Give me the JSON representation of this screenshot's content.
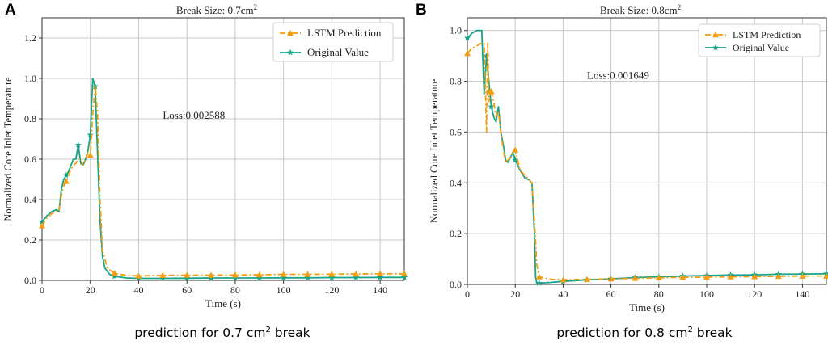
{
  "panels": [
    {
      "letter": "A",
      "caption_pre": "prediction for 0.7 cm",
      "caption_sup": "2",
      "caption_post": " break"
    },
    {
      "letter": "B",
      "caption_pre": "prediction for 0.8 cm",
      "caption_sup": "2",
      "caption_post": " break"
    }
  ],
  "chart_data": [
    {
      "type": "line",
      "title": "Break Size: 0.7cm²",
      "title_pre": "Break Size: 0.7cm",
      "title_sup": "2",
      "xlabel": "Time (s)",
      "ylabel": "Normalized Core Inlet Temperature",
      "xlim": [
        0,
        150
      ],
      "ylim": [
        0,
        1.3
      ],
      "xticks": [
        0,
        20,
        40,
        60,
        80,
        100,
        120,
        140
      ],
      "yticks": [
        0.0,
        0.2,
        0.4,
        0.6,
        0.8,
        1.0,
        1.2
      ],
      "ytick_labels": [
        "0.0",
        "0.2",
        "0.4",
        "0.6",
        "0.8",
        "1.0",
        "1.2"
      ],
      "grid": true,
      "legend_position": "top-right",
      "annotation": {
        "text": "Loss:0.002588",
        "x": 50,
        "y": 0.8
      },
      "series": [
        {
          "name": "LSTM Prediction",
          "color": "#f39c12",
          "style": "dashdot",
          "marker": "triangle",
          "x": [
            0,
            2,
            4,
            6,
            7,
            8,
            9,
            10,
            11,
            12,
            13,
            14,
            15,
            16,
            17,
            18,
            19,
            20,
            21,
            22,
            23,
            24,
            25,
            27,
            30,
            35,
            40,
            50,
            60,
            70,
            80,
            90,
            100,
            110,
            120,
            130,
            140,
            150
          ],
          "y": [
            0.27,
            0.31,
            0.33,
            0.34,
            0.34,
            0.42,
            0.47,
            0.49,
            0.52,
            0.55,
            0.57,
            0.58,
            0.6,
            0.6,
            0.57,
            0.6,
            0.63,
            0.62,
            0.82,
            0.97,
            0.82,
            0.4,
            0.15,
            0.06,
            0.035,
            0.025,
            0.022,
            0.025,
            0.026,
            0.026,
            0.027,
            0.028,
            0.03,
            0.03,
            0.031,
            0.032,
            0.033,
            0.033
          ],
          "marker_x": [
            0,
            10,
            20,
            30,
            40,
            50,
            60,
            70,
            80,
            90,
            100,
            110,
            120,
            130,
            140,
            150
          ],
          "marker_y": [
            0.27,
            0.49,
            0.62,
            0.035,
            0.022,
            0.025,
            0.026,
            0.026,
            0.027,
            0.028,
            0.03,
            0.03,
            0.031,
            0.032,
            0.033,
            0.033
          ]
        },
        {
          "name": "Original Value",
          "color": "#17a589",
          "style": "solid",
          "marker": "star",
          "x": [
            0,
            2,
            4,
            6,
            7,
            8,
            9,
            10,
            11,
            12,
            13,
            14,
            15,
            16,
            17,
            18,
            19,
            20,
            21,
            22,
            23,
            24,
            25,
            26,
            28,
            30,
            35,
            40,
            50,
            60,
            70,
            80,
            90,
            100,
            110,
            120,
            130,
            140,
            150
          ],
          "y": [
            0.29,
            0.32,
            0.34,
            0.35,
            0.34,
            0.45,
            0.5,
            0.52,
            0.54,
            0.57,
            0.6,
            0.6,
            0.67,
            0.58,
            0.57,
            0.6,
            0.64,
            0.72,
            1.0,
            0.96,
            0.62,
            0.3,
            0.12,
            0.06,
            0.03,
            0.02,
            0.012,
            0.01,
            0.01,
            0.011,
            0.012,
            0.012,
            0.012,
            0.013,
            0.013,
            0.014,
            0.014,
            0.015,
            0.015
          ],
          "marker_x": [
            0,
            10,
            15,
            20,
            22,
            30,
            40,
            50,
            60,
            70,
            80,
            90,
            100,
            110,
            120,
            130,
            140,
            150
          ],
          "marker_y": [
            0.29,
            0.52,
            0.67,
            0.72,
            0.96,
            0.02,
            0.01,
            0.01,
            0.011,
            0.012,
            0.012,
            0.012,
            0.013,
            0.013,
            0.014,
            0.014,
            0.015,
            0.015
          ]
        }
      ]
    },
    {
      "type": "line",
      "title": "Break Size: 0.8cm²",
      "title_pre": "Break Size: 0.8cm",
      "title_sup": "2",
      "xlabel": "Time (s)",
      "ylabel": "Normalized Core Inlet Temperature",
      "xlim": [
        0,
        150
      ],
      "ylim": [
        0,
        1.05
      ],
      "xticks": [
        0,
        20,
        40,
        60,
        80,
        100,
        120,
        140
      ],
      "yticks": [
        0.0,
        0.2,
        0.4,
        0.6,
        0.8,
        1.0
      ],
      "ytick_labels": [
        "0.0",
        "0.2",
        "0.4",
        "0.6",
        "0.8",
        "1.0"
      ],
      "grid": true,
      "legend_position": "top-right",
      "annotation": {
        "text": "Loss:0.001649",
        "x": 50,
        "y": 0.81
      },
      "series": [
        {
          "name": "LSTM Prediction",
          "color": "#f39c12",
          "style": "dashdot",
          "marker": "triangle",
          "x": [
            0,
            2,
            4,
            6,
            7,
            7.5,
            8,
            8.5,
            9,
            10,
            11,
            12,
            13,
            14,
            15,
            16,
            17,
            18,
            19,
            20,
            22,
            24,
            26,
            27,
            28,
            29,
            30,
            35,
            40,
            50,
            60,
            70,
            80,
            90,
            100,
            110,
            120,
            130,
            140,
            150
          ],
          "y": [
            0.91,
            0.93,
            0.94,
            0.95,
            0.95,
            0.78,
            0.6,
            0.95,
            0.72,
            0.76,
            0.72,
            0.66,
            0.68,
            0.6,
            0.53,
            0.48,
            0.49,
            0.5,
            0.52,
            0.53,
            0.45,
            0.43,
            0.41,
            0.4,
            0.25,
            0.08,
            0.03,
            0.02,
            0.018,
            0.02,
            0.022,
            0.024,
            0.026,
            0.028,
            0.029,
            0.03,
            0.031,
            0.032,
            0.033,
            0.033
          ],
          "marker_x": [
            0,
            10,
            20,
            30,
            40,
            50,
            60,
            70,
            80,
            90,
            100,
            110,
            120,
            130,
            140,
            150
          ],
          "marker_y": [
            0.91,
            0.76,
            0.53,
            0.03,
            0.018,
            0.02,
            0.022,
            0.024,
            0.026,
            0.028,
            0.029,
            0.03,
            0.031,
            0.032,
            0.033,
            0.033
          ]
        },
        {
          "name": "Original Value",
          "color": "#17a589",
          "style": "solid",
          "marker": "star",
          "x": [
            0,
            2,
            4,
            6,
            7,
            8,
            9,
            10,
            11,
            12,
            13,
            14,
            15,
            16,
            17,
            18,
            19,
            20,
            22,
            24,
            26,
            27,
            28,
            28.5,
            29,
            30,
            35,
            40,
            50,
            60,
            70,
            80,
            90,
            100,
            110,
            120,
            130,
            140,
            150
          ],
          "y": [
            0.97,
            0.99,
            1.0,
            1.0,
            0.75,
            0.9,
            0.8,
            0.7,
            0.66,
            0.64,
            0.7,
            0.6,
            0.55,
            0.49,
            0.48,
            0.5,
            0.52,
            0.49,
            0.45,
            0.42,
            0.41,
            0.4,
            0.2,
            0.03,
            0.005,
            0.005,
            0.008,
            0.012,
            0.018,
            0.022,
            0.027,
            0.03,
            0.033,
            0.035,
            0.037,
            0.038,
            0.04,
            0.041,
            0.042
          ],
          "marker_x": [
            0,
            8,
            10,
            20,
            30,
            40,
            50,
            60,
            70,
            80,
            90,
            100,
            110,
            120,
            130,
            140,
            150
          ],
          "marker_y": [
            0.97,
            0.9,
            0.7,
            0.49,
            0.005,
            0.012,
            0.018,
            0.022,
            0.027,
            0.03,
            0.033,
            0.035,
            0.037,
            0.038,
            0.04,
            0.041,
            0.042
          ]
        }
      ]
    }
  ]
}
